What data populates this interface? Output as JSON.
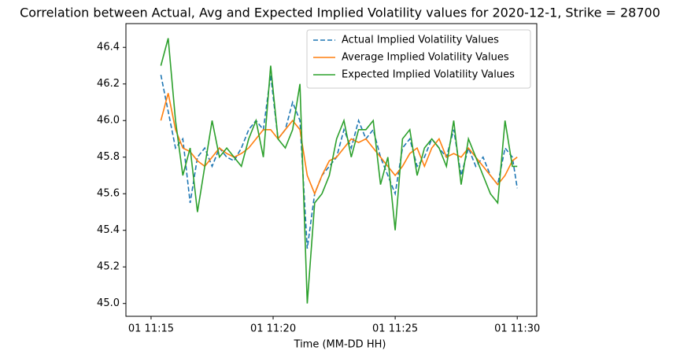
{
  "chart_data": {
    "type": "line",
    "title": "Correlation between Actual, Avg and Expected Implied Volatility values for 2020-12-1, Strike = 28700",
    "x_label": "Time (MM-DD HH)",
    "x": [
      15.4,
      15.7,
      16.0,
      16.3,
      16.6,
      16.9,
      17.2,
      17.5,
      17.8,
      18.1,
      18.4,
      18.7,
      19.0,
      19.3,
      19.6,
      19.9,
      20.2,
      20.5,
      20.8,
      21.1,
      21.4,
      21.7,
      22.0,
      22.3,
      22.6,
      22.9,
      23.2,
      23.5,
      23.8,
      24.1,
      24.4,
      24.7,
      25.0,
      25.3,
      25.6,
      25.9,
      26.2,
      26.5,
      26.8,
      27.1,
      27.4,
      27.7,
      28.0,
      28.3,
      28.6,
      28.9,
      29.2,
      29.5,
      29.8,
      30.0
    ],
    "series": [
      {
        "name": "Actual Implied Volatility Values",
        "color": "#1f77b4",
        "dashed": true,
        "values": [
          46.25,
          46.05,
          45.85,
          45.9,
          45.55,
          45.8,
          45.85,
          45.75,
          45.85,
          45.8,
          45.78,
          45.85,
          45.95,
          46.0,
          45.95,
          46.25,
          45.9,
          45.95,
          46.1,
          46.0,
          45.3,
          45.6,
          45.7,
          45.75,
          45.8,
          45.95,
          45.85,
          46.0,
          45.9,
          45.95,
          45.8,
          45.7,
          45.6,
          45.85,
          45.9,
          45.75,
          45.8,
          45.9,
          45.85,
          45.8,
          45.95,
          45.7,
          45.85,
          45.75,
          45.8,
          45.7,
          45.65,
          45.85,
          45.8,
          45.63
        ]
      },
      {
        "name": "Average Implied Volatility Values",
        "color": "#ff7f0e",
        "dashed": false,
        "values": [
          46.0,
          46.15,
          45.95,
          45.85,
          45.83,
          45.78,
          45.75,
          45.8,
          45.85,
          45.82,
          45.8,
          45.82,
          45.85,
          45.9,
          45.95,
          45.95,
          45.9,
          45.95,
          46.0,
          45.95,
          45.7,
          45.6,
          45.7,
          45.78,
          45.8,
          45.85,
          45.9,
          45.88,
          45.9,
          45.85,
          45.8,
          45.75,
          45.7,
          45.75,
          45.82,
          45.85,
          45.75,
          45.85,
          45.9,
          45.8,
          45.82,
          45.8,
          45.85,
          45.8,
          45.75,
          45.7,
          45.65,
          45.7,
          45.78,
          45.8
        ]
      },
      {
        "name": "Expected Implied Volatility Values",
        "color": "#2ca02c",
        "dashed": false,
        "values": [
          46.3,
          46.45,
          46.0,
          45.7,
          45.85,
          45.5,
          45.75,
          46.0,
          45.8,
          45.85,
          45.8,
          45.75,
          45.9,
          46.0,
          45.8,
          46.3,
          45.9,
          45.85,
          45.95,
          46.2,
          45.0,
          45.55,
          45.6,
          45.7,
          45.9,
          46.0,
          45.8,
          45.95,
          45.95,
          46.0,
          45.65,
          45.8,
          45.4,
          45.9,
          45.95,
          45.7,
          45.85,
          45.9,
          45.85,
          45.75,
          46.0,
          45.65,
          45.9,
          45.8,
          45.7,
          45.6,
          45.55,
          46.0,
          45.75,
          45.75
        ]
      }
    ],
    "xlim": [
      13.97,
      30.8
    ],
    "xticks": [
      {
        "value": 15,
        "label": "01 11:15"
      },
      {
        "value": 20,
        "label": "01 11:20"
      },
      {
        "value": 25,
        "label": "01 11:25"
      },
      {
        "value": 30,
        "label": "01 11:30"
      }
    ],
    "ylim": [
      44.93,
      46.53
    ],
    "yticks": [
      {
        "value": 45,
        "label": "45.0"
      },
      45.2,
      45.4,
      45.6,
      45.8,
      {
        "value": 46,
        "label": "46.0"
      },
      46.2,
      46.4
    ],
    "grid": false,
    "legend": "upper right"
  }
}
